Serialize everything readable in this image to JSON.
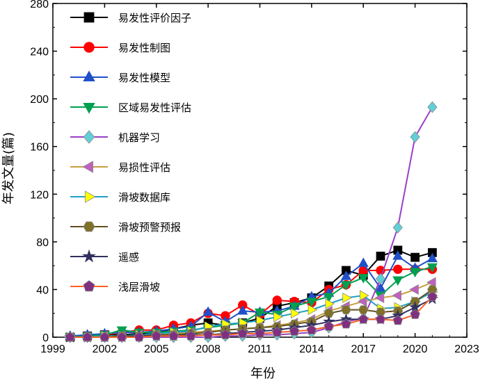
{
  "chart_data": {
    "type": "line",
    "xlabel": "年份",
    "ylabel": "年发文量(篇)",
    "xlim": [
      1999,
      2023
    ],
    "ylim": [
      0,
      280
    ],
    "xticks": [
      "1999",
      "2002",
      "2005",
      "2008",
      "2011",
      "2014",
      "2017",
      "2020",
      "2023"
    ],
    "yticks": [
      "0",
      "40",
      "80",
      "120",
      "160",
      "200",
      "240",
      "280"
    ],
    "x": [
      2000,
      2001,
      2002,
      2003,
      2004,
      2005,
      2006,
      2007,
      2008,
      2009,
      2010,
      2011,
      2012,
      2013,
      2014,
      2015,
      2016,
      2017,
      2018,
      2019,
      2020,
      2021
    ],
    "legend": "top-left",
    "series": [
      {
        "name": "易发性评价因子",
        "color": "#000000",
        "marker": "square",
        "values": [
          0,
          1,
          2,
          2,
          3,
          4,
          7,
          10,
          12,
          10,
          12,
          16,
          26,
          29,
          33,
          43,
          56,
          52,
          68,
          73,
          67,
          71
        ]
      },
      {
        "name": "易发性制图",
        "color": "#ff0000",
        "marker": "circle",
        "values": [
          0,
          1,
          2,
          4,
          6,
          6,
          10,
          12,
          20,
          18,
          27,
          19,
          31,
          30,
          29,
          40,
          44,
          56,
          56,
          57,
          57,
          57
        ]
      },
      {
        "name": "易发性模型",
        "color": "#2050c8",
        "marker": "triangle-up",
        "values": [
          1,
          2,
          3,
          4,
          4,
          5,
          7,
          9,
          21,
          13,
          22,
          21,
          22,
          26,
          34,
          37,
          51,
          62,
          41,
          68,
          58,
          66
        ]
      },
      {
        "name": "区域易发性评估",
        "color": "#00a050",
        "marker": "triangle-down",
        "values": [
          0,
          1,
          2,
          6,
          4,
          4,
          5,
          6,
          8,
          10,
          12,
          21,
          19,
          26,
          30,
          34,
          44,
          50,
          35,
          48,
          55,
          59
        ]
      },
      {
        "name": "机器学习",
        "color": "#9a40c8",
        "marker": "diamond",
        "marker_fill": "#60d0d8",
        "values": [
          0,
          0,
          0,
          0,
          0,
          0,
          0,
          0,
          0,
          1,
          1,
          2,
          2,
          3,
          4,
          8,
          13,
          16,
          49,
          92,
          168,
          193
        ]
      },
      {
        "name": "易损性评估",
        "color": "#c8a040",
        "marker": "triangle-left",
        "marker_fill": "#c060c0",
        "values": [
          0,
          0,
          1,
          1,
          2,
          2,
          3,
          4,
          5,
          6,
          7,
          8,
          10,
          12,
          15,
          22,
          26,
          30,
          33,
          35,
          40,
          46
        ]
      },
      {
        "name": "滑坡数据库",
        "color": "#20a0c0",
        "marker": "triangle-right",
        "marker_fill": "#ffff00",
        "values": [
          0,
          0,
          1,
          1,
          2,
          3,
          4,
          5,
          9,
          11,
          12,
          14,
          17,
          20,
          23,
          28,
          33,
          35,
          24,
          25,
          30,
          38
        ]
      },
      {
        "name": "滑坡预警预报",
        "color": "#605020",
        "marker": "hexagon",
        "marker_fill": "#807028",
        "values": [
          0,
          0,
          0,
          1,
          1,
          2,
          2,
          3,
          4,
          6,
          7,
          8,
          9,
          11,
          13,
          20,
          23,
          23,
          21,
          22,
          30,
          40
        ]
      },
      {
        "name": "遥感",
        "color": "#303060",
        "marker": "star",
        "values": [
          0,
          0,
          0,
          0,
          1,
          1,
          1,
          2,
          2,
          3,
          4,
          5,
          6,
          8,
          10,
          13,
          15,
          15,
          15,
          18,
          25,
          32
        ]
      },
      {
        "name": "浅层滑坡",
        "color": "#ff6020",
        "marker": "pentagon",
        "marker_fill": "#803080",
        "values": [
          0,
          0,
          0,
          0,
          0,
          1,
          1,
          1,
          2,
          2,
          3,
          3,
          4,
          5,
          6,
          9,
          11,
          15,
          15,
          14,
          19,
          34
        ]
      }
    ]
  }
}
